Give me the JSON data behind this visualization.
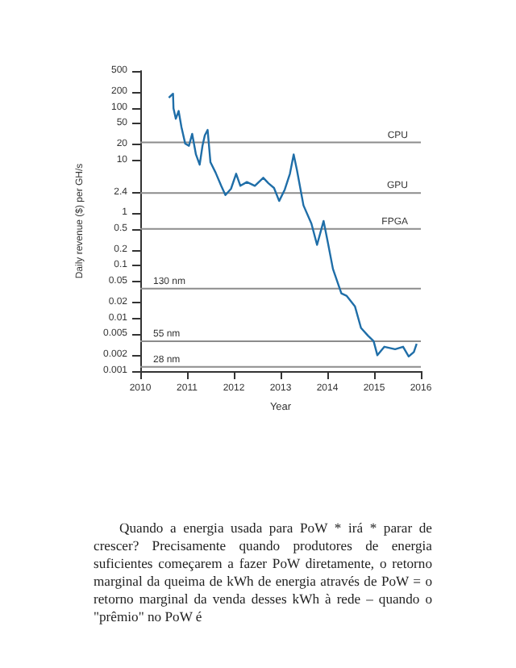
{
  "chart_data": {
    "type": "line",
    "xlabel": "Year",
    "ylabel": "Daily revenue ($) per GH/s",
    "log": "y",
    "grid": false,
    "marker": "none",
    "line_style": "solid",
    "xlim": [
      2010,
      2016
    ],
    "xticks": [
      2010,
      2011,
      2012,
      2013,
      2014,
      2015,
      2016
    ],
    "ylim": [
      0.001,
      500
    ],
    "yticks": [
      0.001,
      0.002,
      0.005,
      0.01,
      0.02,
      0.05,
      0.1,
      0.2,
      0.5,
      1,
      2.4,
      10,
      20,
      50,
      100,
      200,
      500
    ],
    "series": [
      {
        "color": "#1f6ea8",
        "x": [
          2010.61,
          2010.7,
          2010.71,
          2010.76,
          2010.82,
          2010.88,
          2010.96,
          2011.04,
          2011.11,
          2011.19,
          2011.27,
          2011.33,
          2011.38,
          2011.44,
          2011.5,
          2011.61,
          2011.73,
          2011.82,
          2011.94,
          2012.05,
          2012.14,
          2012.28,
          2012.45,
          2012.63,
          2012.74,
          2012.86,
          2012.97,
          2013.09,
          2013.2,
          2013.28,
          2013.35,
          2013.49,
          2013.66,
          2013.78,
          2013.92,
          2014.01,
          2014.12,
          2014.3,
          2014.41,
          2014.59,
          2014.72,
          2014.87,
          2014.99,
          2015.07,
          2015.22,
          2015.45,
          2015.62,
          2015.74,
          2015.85,
          2015.91
        ],
        "values": [
          155,
          185,
          98,
          62,
          87,
          43,
          21,
          19,
          32,
          13,
          8.3,
          19,
          30,
          38,
          9.3,
          5.9,
          3.3,
          2.2,
          2.9,
          5.6,
          3.3,
          3.9,
          3.3,
          4.7,
          3.7,
          3.0,
          1.7,
          2.8,
          5.6,
          13,
          6.6,
          1.4,
          0.63,
          0.25,
          0.71,
          0.28,
          0.087,
          0.03,
          0.027,
          0.017,
          0.0066,
          0.0047,
          0.0037,
          0.002,
          0.0029,
          0.0026,
          0.0029,
          0.0019,
          0.0023,
          0.0033
        ]
      }
    ],
    "ref_lines": [
      {
        "axis": "y",
        "value": 22,
        "label": "CPU",
        "color": "#8c8c8c"
      },
      {
        "axis": "y",
        "value": 2.4,
        "label": "GPU",
        "color": "#8c8c8c"
      },
      {
        "axis": "y",
        "value": 0.5,
        "label": "FPGA",
        "color": "#8c8c8c"
      },
      {
        "axis": "y",
        "value": 0.037,
        "label": "130 nm",
        "color": "#8c8c8c"
      },
      {
        "axis": "y",
        "value": 0.0037,
        "label": "55 nm",
        "color": "#8c8c8c"
      },
      {
        "axis": "y",
        "value": 0.0012,
        "label": "28 nm",
        "color": "#8c8c8c"
      }
    ],
    "annotations": [
      "Quando a energia usada para PoW * irá * parar de crescer? Precisamente quando produtores de energia suficientes começarem a fazer PoW diretamente, o retorno marginal da queima de kWh de energia através de PoW = o retorno marginal da venda desses kWh à rede – quando o \"prêmio\" no PoW é"
    ]
  }
}
